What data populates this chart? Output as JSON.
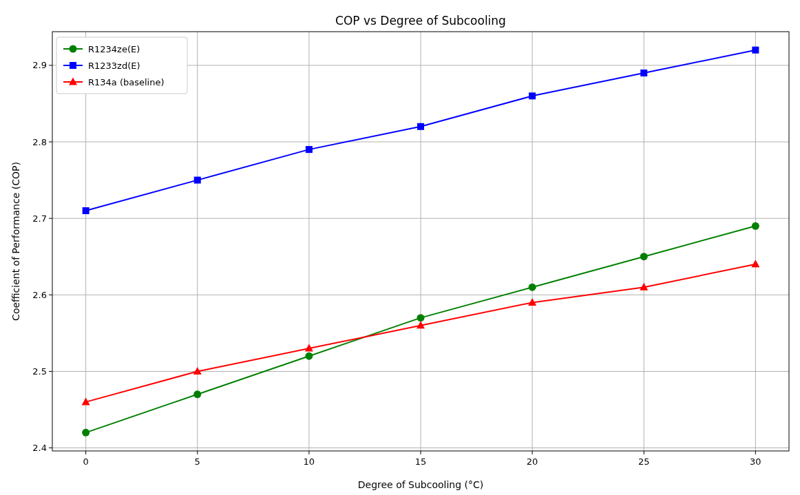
{
  "chart_data": {
    "type": "line",
    "title": "COP vs Degree of Subcooling",
    "xlabel": "Degree of Subcooling (°C)",
    "ylabel": "Coefficient of Performance (COP)",
    "x": [
      0,
      5,
      10,
      15,
      20,
      25,
      30
    ],
    "series": [
      {
        "name": "R1234ze(E)",
        "color": "#008000",
        "marker": "circle",
        "values": [
          2.42,
          2.47,
          2.52,
          2.57,
          2.61,
          2.65,
          2.69
        ]
      },
      {
        "name": "R1233zd(E)",
        "color": "#0000ff",
        "marker": "square",
        "values": [
          2.71,
          2.75,
          2.79,
          2.82,
          2.86,
          2.89,
          2.92
        ]
      },
      {
        "name": "R134a (baseline)",
        "color": "#ff0000",
        "marker": "triangle",
        "values": [
          2.46,
          2.5,
          2.53,
          2.56,
          2.59,
          2.61,
          2.64
        ]
      }
    ],
    "xlim": [
      -1.5,
      31.5
    ],
    "xticks": [
      0,
      5,
      10,
      15,
      20,
      25,
      30
    ],
    "ylim": [
      2.396,
      2.944
    ],
    "yticks": [
      2.4,
      2.5,
      2.6,
      2.7,
      2.8,
      2.9
    ],
    "grid": true,
    "legend": "top left",
    "line_style": "solid"
  }
}
